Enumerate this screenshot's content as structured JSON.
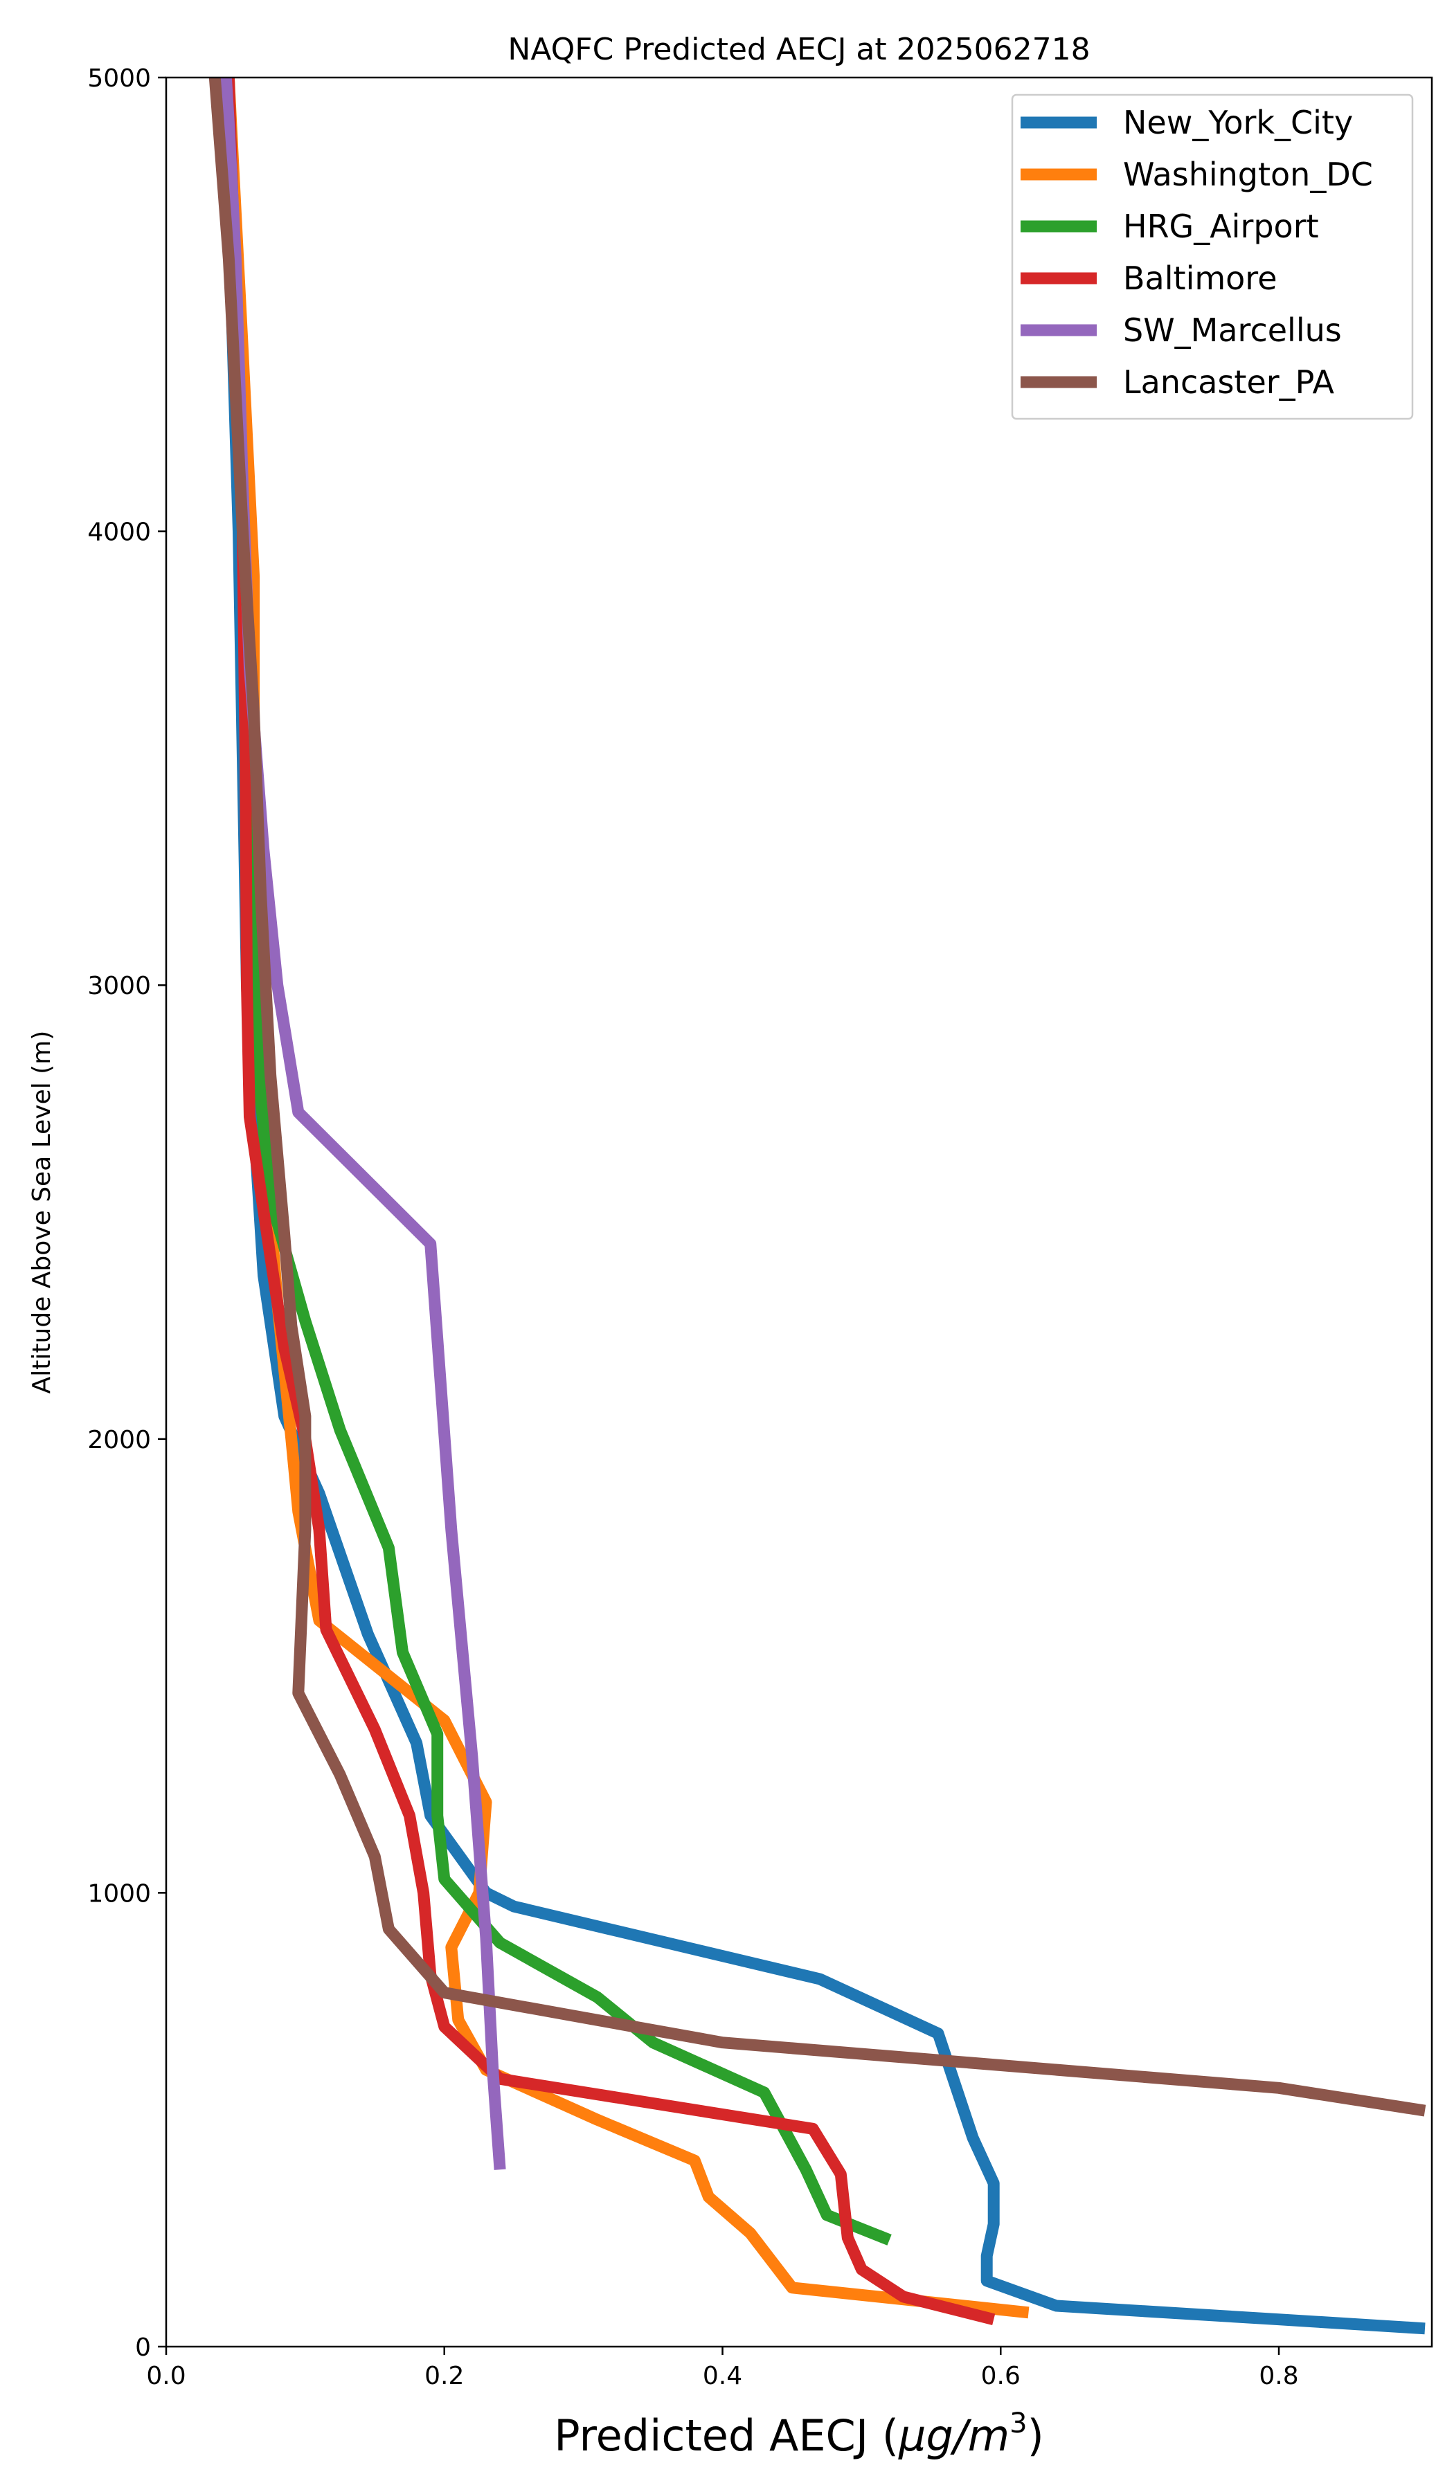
{
  "chart_data": {
    "type": "line",
    "title": "NAQFC Predicted AECJ at 2025062718",
    "xlabel_main": "Predicted AECJ (",
    "xlabel_unit": "μg/m",
    "xlabel_sup": "3",
    "xlabel_end": ")",
    "ylabel": "Altitude Above Sea Level (m)",
    "xlim": [
      0.0,
      0.91
    ],
    "ylim": [
      0,
      5000
    ],
    "xticks": [
      "0.0",
      "0.2",
      "0.4",
      "0.6",
      "0.8"
    ],
    "xtick_values": [
      0.0,
      0.2,
      0.4,
      0.6,
      0.8
    ],
    "yticks": [
      "0",
      "1000",
      "2000",
      "3000",
      "4000",
      "5000"
    ],
    "ytick_values": [
      0,
      1000,
      2000,
      3000,
      4000,
      5000
    ],
    "grid": false,
    "legend_position": "top-right",
    "series": [
      {
        "name": "New_York_City",
        "color": "#1f77b4",
        "points": [
          [
            0.905,
            40
          ],
          [
            0.8,
            60
          ],
          [
            0.64,
            90
          ],
          [
            0.59,
            145
          ],
          [
            0.59,
            200
          ],
          [
            0.595,
            270
          ],
          [
            0.595,
            360
          ],
          [
            0.58,
            460
          ],
          [
            0.555,
            690
          ],
          [
            0.47,
            810
          ],
          [
            0.25,
            970
          ],
          [
            0.23,
            1000
          ],
          [
            0.19,
            1170
          ],
          [
            0.18,
            1330
          ],
          [
            0.145,
            1570
          ],
          [
            0.11,
            1880
          ],
          [
            0.085,
            2050
          ],
          [
            0.07,
            2360
          ],
          [
            0.063,
            2700
          ],
          [
            0.058,
            3000
          ],
          [
            0.055,
            3500
          ],
          [
            0.052,
            4000
          ],
          [
            0.047,
            4500
          ],
          [
            0.04,
            5000
          ]
        ]
      },
      {
        "name": "Washington_DC",
        "color": "#ff7f0e",
        "points": [
          [
            0.62,
            75
          ],
          [
            0.45,
            130
          ],
          [
            0.42,
            250
          ],
          [
            0.39,
            330
          ],
          [
            0.38,
            410
          ],
          [
            0.31,
            500
          ],
          [
            0.23,
            610
          ],
          [
            0.21,
            720
          ],
          [
            0.205,
            880
          ],
          [
            0.225,
            1000
          ],
          [
            0.23,
            1200
          ],
          [
            0.2,
            1380
          ],
          [
            0.11,
            1600
          ],
          [
            0.095,
            1840
          ],
          [
            0.09,
            2000
          ],
          [
            0.08,
            2300
          ],
          [
            0.07,
            2700
          ],
          [
            0.065,
            3100
          ],
          [
            0.063,
            3500
          ],
          [
            0.063,
            3900
          ],
          [
            0.055,
            4400
          ],
          [
            0.045,
            5000
          ]
        ]
      },
      {
        "name": "HRG_Airport",
        "color": "#2ca02c",
        "points": [
          [
            0.52,
            235
          ],
          [
            0.475,
            290
          ],
          [
            0.46,
            390
          ],
          [
            0.43,
            560
          ],
          [
            0.35,
            670
          ],
          [
            0.31,
            770
          ],
          [
            0.24,
            890
          ],
          [
            0.2,
            1030
          ],
          [
            0.195,
            1170
          ],
          [
            0.195,
            1350
          ],
          [
            0.17,
            1530
          ],
          [
            0.16,
            1760
          ],
          [
            0.125,
            2020
          ],
          [
            0.1,
            2260
          ],
          [
            0.075,
            2530
          ],
          [
            0.068,
            2750
          ],
          [
            0.065,
            3000
          ],
          [
            0.06,
            3500
          ],
          [
            0.055,
            4000
          ],
          [
            0.05,
            4500
          ],
          [
            0.045,
            5000
          ]
        ]
      },
      {
        "name": "Baltimore",
        "color": "#d62728",
        "points": [
          [
            0.595,
            60
          ],
          [
            0.53,
            110
          ],
          [
            0.5,
            170
          ],
          [
            0.49,
            240
          ],
          [
            0.485,
            380
          ],
          [
            0.465,
            480
          ],
          [
            0.24,
            590
          ],
          [
            0.2,
            705
          ],
          [
            0.19,
            820
          ],
          [
            0.185,
            1000
          ],
          [
            0.175,
            1170
          ],
          [
            0.15,
            1360
          ],
          [
            0.115,
            1580
          ],
          [
            0.11,
            1800
          ],
          [
            0.1,
            2000
          ],
          [
            0.085,
            2200
          ],
          [
            0.075,
            2400
          ],
          [
            0.06,
            2710
          ],
          [
            0.058,
            3000
          ],
          [
            0.057,
            3500
          ],
          [
            0.055,
            4000
          ],
          [
            0.05,
            4500
          ],
          [
            0.045,
            5000
          ]
        ]
      },
      {
        "name": "SW_Marcellus",
        "color": "#9467bd",
        "points": [
          [
            0.24,
            390
          ],
          [
            0.235,
            600
          ],
          [
            0.23,
            900
          ],
          [
            0.22,
            1300
          ],
          [
            0.205,
            1800
          ],
          [
            0.19,
            2430
          ],
          [
            0.095,
            2720
          ],
          [
            0.08,
            3000
          ],
          [
            0.07,
            3300
          ],
          [
            0.06,
            3700
          ],
          [
            0.055,
            4100
          ],
          [
            0.05,
            4600
          ],
          [
            0.045,
            4900
          ],
          [
            0.043,
            5000
          ]
        ]
      },
      {
        "name": "Lancaster_PA",
        "color": "#8c564b",
        "points": [
          [
            0.905,
            520
          ],
          [
            0.8,
            570
          ],
          [
            0.4,
            670
          ],
          [
            0.2,
            780
          ],
          [
            0.16,
            920
          ],
          [
            0.15,
            1080
          ],
          [
            0.125,
            1260
          ],
          [
            0.095,
            1440
          ],
          [
            0.1,
            1800
          ],
          [
            0.1,
            2050
          ],
          [
            0.09,
            2250
          ],
          [
            0.085,
            2450
          ],
          [
            0.075,
            2800
          ],
          [
            0.068,
            3200
          ],
          [
            0.063,
            3600
          ],
          [
            0.055,
            4000
          ],
          [
            0.05,
            4300
          ],
          [
            0.045,
            4600
          ],
          [
            0.035,
            5000
          ]
        ]
      }
    ]
  }
}
